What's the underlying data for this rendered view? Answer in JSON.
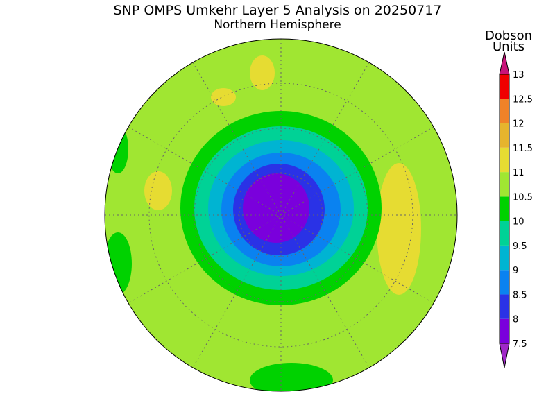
{
  "header": {
    "title": "SNP OMPS Umkehr Layer 5 Analysis on 20250717",
    "subtitle": "Northern Hemisphere"
  },
  "colorbar": {
    "unit_label": [
      "Dobson",
      "Units"
    ],
    "ticks": [
      "7.5",
      "8",
      "8.5",
      "9",
      "9.5",
      "10",
      "10.5",
      "11",
      "11.5",
      "12",
      "12.5",
      "13"
    ],
    "colors": [
      "#7a00dc",
      "#2a32e6",
      "#0a82f0",
      "#00b4d2",
      "#00d296",
      "#00d200",
      "#a0e632",
      "#e6dc32",
      "#e6b42d",
      "#f08228",
      "#f00000"
    ],
    "under_color": "#a028c8",
    "over_color": "#c8147a"
  }
}
